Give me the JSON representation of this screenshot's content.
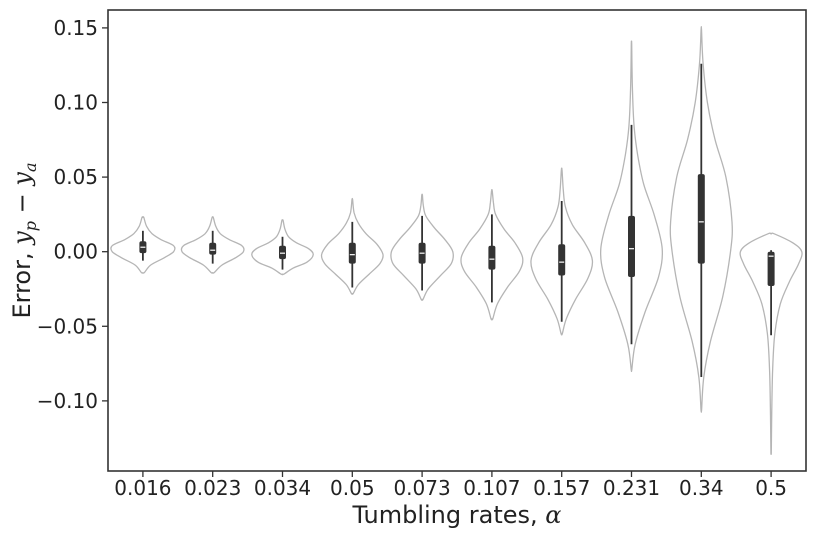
{
  "chart_data": {
    "type": "violin",
    "xlabel": {
      "text": "Tumbling rates, ",
      "symbol": "α"
    },
    "ylabel": {
      "text": "Error, ",
      "math_a": "y",
      "sub_a": "p",
      "op": " − ",
      "math_b": "y",
      "sub_b": "a"
    },
    "categories": [
      "0.016",
      "0.023",
      "0.034",
      "0.05",
      "0.073",
      "0.107",
      "0.157",
      "0.231",
      "0.34",
      "0.5"
    ],
    "ylim": [
      -0.147,
      0.162
    ],
    "yticks": [
      0.15,
      0.1,
      0.05,
      0.0,
      -0.05,
      -0.1
    ],
    "ytick_labels": [
      "0.15",
      "0.10",
      "0.05",
      "0.00",
      "−0.05",
      "−0.10"
    ],
    "grid": false,
    "colors": {
      "violin_edge": "#b5b5b5",
      "box": "#333333",
      "median": "#ffffff",
      "axis": "#333333"
    },
    "distributions": [
      {
        "category": "0.016",
        "min": -0.014,
        "max": 0.023,
        "q1": -0.001,
        "median": 0.003,
        "q3": 0.007,
        "whisker_low": -0.006,
        "whisker_high": 0.014,
        "density": [
          [
            -0.014,
            0.05
          ],
          [
            -0.009,
            0.25
          ],
          [
            -0.004,
            0.7
          ],
          [
            0.0,
            1.0
          ],
          [
            0.004,
            1.0
          ],
          [
            0.008,
            0.6
          ],
          [
            0.012,
            0.3
          ],
          [
            0.017,
            0.12
          ],
          [
            0.023,
            0.03
          ]
        ]
      },
      {
        "category": "0.023",
        "min": -0.014,
        "max": 0.023,
        "q1": -0.002,
        "median": 0.001,
        "q3": 0.006,
        "whisker_low": -0.008,
        "whisker_high": 0.014,
        "density": [
          [
            -0.014,
            0.05
          ],
          [
            -0.009,
            0.3
          ],
          [
            -0.004,
            0.75
          ],
          [
            0.0,
            1.0
          ],
          [
            0.004,
            0.95
          ],
          [
            0.008,
            0.55
          ],
          [
            0.012,
            0.25
          ],
          [
            0.017,
            0.1
          ],
          [
            0.023,
            0.02
          ]
        ]
      },
      {
        "category": "0.034",
        "min": -0.015,
        "max": 0.021,
        "q1": -0.005,
        "median": -0.001,
        "q3": 0.004,
        "whisker_low": -0.012,
        "whisker_high": 0.01,
        "density": [
          [
            -0.015,
            0.05
          ],
          [
            -0.011,
            0.35
          ],
          [
            -0.007,
            0.8
          ],
          [
            -0.002,
            1.0
          ],
          [
            0.002,
            0.85
          ],
          [
            0.006,
            0.45
          ],
          [
            0.01,
            0.2
          ],
          [
            0.015,
            0.08
          ],
          [
            0.021,
            0.02
          ]
        ]
      },
      {
        "category": "0.05",
        "min": -0.028,
        "max": 0.035,
        "q1": -0.008,
        "median": -0.002,
        "q3": 0.006,
        "whisker_low": -0.024,
        "whisker_high": 0.02,
        "density": [
          [
            -0.028,
            0.03
          ],
          [
            -0.022,
            0.2
          ],
          [
            -0.015,
            0.55
          ],
          [
            -0.008,
            0.9
          ],
          [
            -0.002,
            1.0
          ],
          [
            0.005,
            0.8
          ],
          [
            0.012,
            0.45
          ],
          [
            0.019,
            0.2
          ],
          [
            0.026,
            0.06
          ],
          [
            0.035,
            0.01
          ]
        ]
      },
      {
        "category": "0.073",
        "min": -0.032,
        "max": 0.038,
        "q1": -0.008,
        "median": -0.001,
        "q3": 0.006,
        "whisker_low": -0.026,
        "whisker_high": 0.024,
        "density": [
          [
            -0.032,
            0.03
          ],
          [
            -0.025,
            0.2
          ],
          [
            -0.016,
            0.6
          ],
          [
            -0.008,
            0.95
          ],
          [
            0.0,
            1.0
          ],
          [
            0.008,
            0.75
          ],
          [
            0.016,
            0.4
          ],
          [
            0.024,
            0.12
          ],
          [
            0.031,
            0.04
          ],
          [
            0.038,
            0.01
          ]
        ]
      },
      {
        "category": "0.107",
        "min": -0.045,
        "max": 0.041,
        "q1": -0.012,
        "median": -0.005,
        "q3": 0.004,
        "whisker_low": -0.034,
        "whisker_high": 0.025,
        "density": [
          [
            -0.045,
            0.03
          ],
          [
            -0.035,
            0.18
          ],
          [
            -0.024,
            0.5
          ],
          [
            -0.013,
            0.9
          ],
          [
            -0.004,
            1.0
          ],
          [
            0.006,
            0.75
          ],
          [
            0.015,
            0.4
          ],
          [
            0.025,
            0.12
          ],
          [
            0.033,
            0.05
          ],
          [
            0.041,
            0.01
          ]
        ]
      },
      {
        "category": "0.157",
        "min": -0.055,
        "max": 0.055,
        "q1": -0.016,
        "median": -0.007,
        "q3": 0.005,
        "whisker_low": -0.047,
        "whisker_high": 0.034,
        "density": [
          [
            -0.055,
            0.02
          ],
          [
            -0.045,
            0.15
          ],
          [
            -0.032,
            0.45
          ],
          [
            -0.018,
            0.85
          ],
          [
            -0.006,
            1.0
          ],
          [
            0.006,
            0.75
          ],
          [
            0.018,
            0.35
          ],
          [
            0.03,
            0.12
          ],
          [
            0.042,
            0.05
          ],
          [
            0.055,
            0.01
          ]
        ]
      },
      {
        "category": "0.231",
        "min": -0.079,
        "max": 0.139,
        "q1": -0.017,
        "median": 0.002,
        "q3": 0.024,
        "whisker_low": -0.062,
        "whisker_high": 0.085,
        "density": [
          [
            -0.079,
            0.01
          ],
          [
            -0.062,
            0.12
          ],
          [
            -0.04,
            0.45
          ],
          [
            -0.017,
            0.88
          ],
          [
            0.002,
            1.0
          ],
          [
            0.024,
            0.75
          ],
          [
            0.045,
            0.4
          ],
          [
            0.065,
            0.2
          ],
          [
            0.085,
            0.08
          ],
          [
            0.11,
            0.03
          ],
          [
            0.139,
            0.005
          ]
        ]
      },
      {
        "category": "0.34",
        "min": -0.106,
        "max": 0.149,
        "q1": -0.008,
        "median": 0.02,
        "q3": 0.052,
        "whisker_low": -0.084,
        "whisker_high": 0.126,
        "density": [
          [
            -0.106,
            0.01
          ],
          [
            -0.084,
            0.08
          ],
          [
            -0.06,
            0.3
          ],
          [
            -0.03,
            0.7
          ],
          [
            0.0,
            0.95
          ],
          [
            0.02,
            1.0
          ],
          [
            0.05,
            0.8
          ],
          [
            0.075,
            0.45
          ],
          [
            0.1,
            0.2
          ],
          [
            0.126,
            0.06
          ],
          [
            0.149,
            0.005
          ]
        ]
      },
      {
        "category": "0.5",
        "min": -0.134,
        "max": 0.012,
        "q1": -0.023,
        "median": -0.003,
        "q3": 0.0,
        "whisker_low": -0.056,
        "whisker_high": 0.001,
        "density": [
          [
            -0.134,
            0.005
          ],
          [
            -0.11,
            0.02
          ],
          [
            -0.08,
            0.05
          ],
          [
            -0.055,
            0.12
          ],
          [
            -0.035,
            0.3
          ],
          [
            -0.02,
            0.6
          ],
          [
            -0.008,
            0.9
          ],
          [
            0.0,
            1.0
          ],
          [
            0.006,
            0.7
          ],
          [
            0.012,
            0.1
          ]
        ]
      }
    ]
  }
}
